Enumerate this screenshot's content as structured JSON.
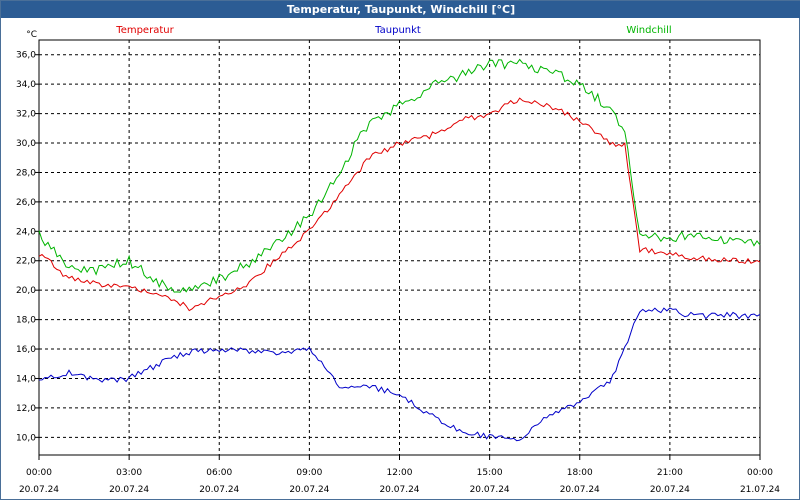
{
  "window": {
    "title": "Temperatur, Taupunkt, Windchill [°C]"
  },
  "chart_data": {
    "type": "line",
    "title": "Temperatur, Taupunkt, Windchill [°C]",
    "ylabel": "°C",
    "xlabel": "",
    "ylim": [
      8.8,
      37.0
    ],
    "xlim_hours": [
      0,
      24
    ],
    "y_ticks": [
      "10,0",
      "12,0",
      "14,0",
      "16,0",
      "18,0",
      "20,0",
      "22,0",
      "24,0",
      "26,0",
      "28,0",
      "30,0",
      "32,0",
      "34,0",
      "36,0"
    ],
    "x_ticks": [
      {
        "time": "00:00",
        "date": "20.07.24"
      },
      {
        "time": "03:00",
        "date": "20.07.24"
      },
      {
        "time": "06:00",
        "date": "20.07.24"
      },
      {
        "time": "09:00",
        "date": "20.07.24"
      },
      {
        "time": "12:00",
        "date": "20.07.24"
      },
      {
        "time": "15:00",
        "date": "20.07.24"
      },
      {
        "time": "18:00",
        "date": "20.07.24"
      },
      {
        "time": "21:00",
        "date": "20.07.24"
      },
      {
        "time": "00:00",
        "date": "21.07.24"
      }
    ],
    "grid": true,
    "legend_position": "top",
    "x_hours": [
      0,
      1,
      2,
      3,
      4,
      5,
      6,
      7,
      8,
      9,
      10,
      11,
      12,
      13,
      14,
      15,
      16,
      17,
      18,
      19,
      19.5,
      20,
      21,
      22,
      23,
      24
    ],
    "series": [
      {
        "name": "Temperatur",
        "color": "#e00000",
        "values": [
          22.5,
          20.8,
          20.4,
          20.2,
          19.8,
          18.8,
          19.6,
          20.5,
          22.3,
          24.0,
          26.5,
          29.0,
          30.0,
          30.5,
          31.5,
          32.0,
          33.0,
          32.5,
          31.5,
          30.0,
          29.8,
          22.8,
          22.4,
          22.2,
          22.0,
          21.9
        ]
      },
      {
        "name": "Taupunkt",
        "color": "#0000c8",
        "values": [
          13.8,
          14.4,
          13.8,
          14.0,
          15.0,
          15.8,
          15.9,
          15.9,
          15.6,
          16.0,
          13.5,
          13.4,
          13.0,
          11.5,
          10.5,
          10.0,
          9.9,
          11.5,
          12.3,
          13.8,
          16.0,
          18.6,
          18.6,
          18.2,
          18.3,
          18.2
        ]
      },
      {
        "name": "Windchill",
        "color": "#00b400",
        "values": [
          23.8,
          21.5,
          21.4,
          22.0,
          20.5,
          19.9,
          20.8,
          21.8,
          23.3,
          25.0,
          28.0,
          31.5,
          32.5,
          33.8,
          34.5,
          35.3,
          35.5,
          34.8,
          34.0,
          32.3,
          31.0,
          23.8,
          23.6,
          23.8,
          23.4,
          23.2
        ]
      }
    ]
  }
}
